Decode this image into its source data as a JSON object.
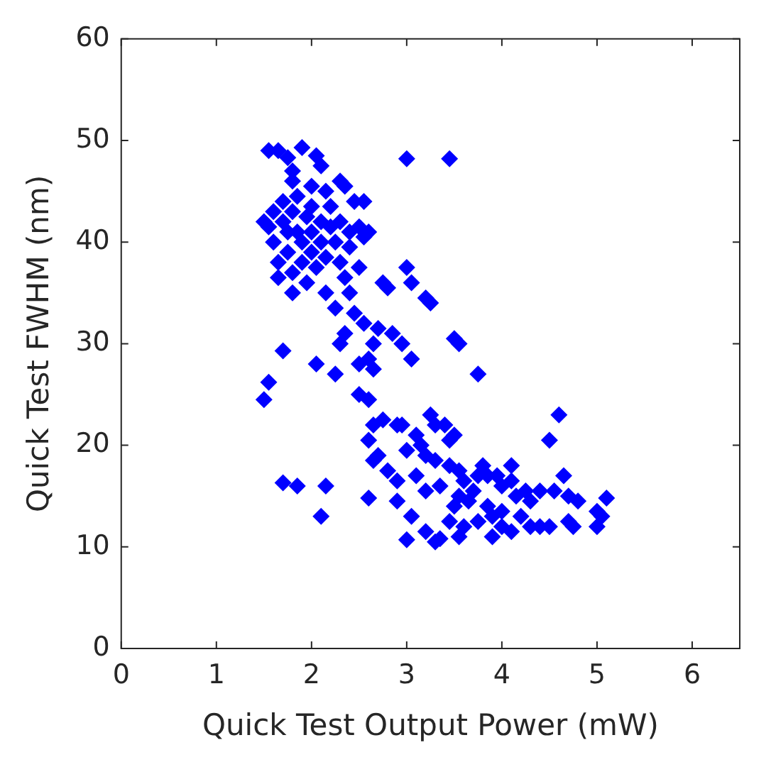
{
  "chart_data": {
    "type": "scatter",
    "xlabel": "Quick Test Output Power (mW)",
    "ylabel": "Quick Test FWHM (nm)",
    "xlim": [
      0,
      6.5
    ],
    "ylim": [
      0,
      60
    ],
    "xticks": [
      0,
      1,
      2,
      3,
      4,
      5,
      6
    ],
    "yticks": [
      0,
      10,
      20,
      30,
      40,
      50,
      60
    ],
    "grid": false,
    "legend": false,
    "marker": "diamond",
    "series": [
      {
        "color": "#0000ff",
        "x": [
          1.5,
          1.55,
          1.55,
          1.65,
          1.7,
          1.7,
          1.85,
          1.9,
          2.05,
          2.1,
          2.15,
          2.25,
          2.05,
          2.1,
          2.3,
          2.35,
          3.0,
          3.45,
          1.75,
          1.8,
          1.8,
          2.0,
          2.15,
          1.5,
          1.55,
          1.6,
          1.6,
          1.65,
          1.65,
          1.7,
          1.7,
          1.75,
          1.75,
          1.8,
          1.8,
          1.8,
          1.85,
          1.85,
          1.9,
          1.9,
          1.95,
          1.95,
          2.0,
          2.0,
          2.0,
          2.05,
          2.1,
          2.1,
          2.15,
          2.15,
          2.2,
          2.2,
          2.25,
          2.3,
          2.3,
          2.35,
          2.4,
          2.4,
          2.45,
          2.5,
          2.55,
          2.55,
          2.6,
          2.5,
          2.45,
          2.35,
          2.3,
          2.25,
          2.4,
          2.55,
          2.65,
          2.75,
          2.8,
          2.7,
          2.85,
          2.95,
          3.0,
          3.05,
          3.2,
          3.25,
          3.05,
          3.5,
          3.55,
          3.75,
          2.5,
          2.6,
          2.65,
          2.5,
          2.6,
          2.65,
          2.75,
          2.6,
          2.7,
          2.65,
          2.9,
          2.95,
          2.6,
          2.9,
          2.8,
          2.9,
          3.0,
          3.2,
          3.3,
          3.35,
          3.05,
          3.1,
          3.2,
          3.1,
          3.15,
          3.2,
          3.3,
          3.25,
          3.4,
          3.45,
          3.5,
          3.45,
          3.55,
          3.6,
          3.55,
          3.5,
          3.45,
          3.6,
          3.7,
          3.75,
          3.8,
          3.85,
          3.95,
          4.0,
          3.85,
          3.9,
          3.75,
          4.0,
          4.1,
          4.15,
          4.25,
          4.3,
          4.2,
          4.3,
          4.4,
          4.5,
          4.4,
          4.55,
          4.65,
          4.7,
          4.8,
          4.5,
          4.6,
          4.7,
          4.75,
          5.0,
          5.0,
          5.05,
          5.1,
          3.9,
          4.0,
          4.1,
          3.55,
          3.65,
          4.1,
          3.35,
          3.3,
          3.0
        ],
        "values": [
          24.5,
          26.2,
          49,
          49,
          16.3,
          29.3,
          16,
          49.3,
          28,
          13,
          16,
          27,
          48.5,
          47.5,
          46,
          45.5,
          48.2,
          48.2,
          48.3,
          47,
          46,
          45.5,
          45,
          42,
          41.5,
          43,
          40,
          38,
          36.5,
          42,
          44,
          41,
          39,
          43,
          37,
          35,
          41,
          44.5,
          40,
          38,
          42.5,
          36,
          41,
          39,
          43.5,
          37.5,
          42,
          40,
          38.5,
          35,
          41.5,
          43.5,
          40,
          38,
          42,
          36.5,
          41,
          39.5,
          44,
          41.5,
          44,
          40.5,
          41,
          37.5,
          33,
          31,
          30,
          33.5,
          35,
          32,
          30,
          36,
          35.5,
          31.5,
          31,
          30,
          37.5,
          36,
          34.5,
          34,
          28.5,
          30.5,
          30,
          27,
          28,
          28.5,
          27.5,
          25,
          24.5,
          22,
          22.5,
          20.5,
          19,
          18.5,
          22,
          22,
          14.8,
          16.5,
          17.5,
          14.5,
          10.7,
          11.5,
          10.5,
          10.8,
          13,
          17,
          15.5,
          21,
          20,
          19,
          22,
          23,
          22,
          20.5,
          21,
          18,
          17.5,
          16.5,
          15,
          14,
          12.5,
          12,
          15.5,
          17,
          18,
          17,
          17,
          16,
          14,
          13,
          12.5,
          12,
          11.5,
          15,
          15.5,
          14.5,
          13,
          12,
          12,
          12,
          15.5,
          15.5,
          17,
          15,
          14.5,
          20.5,
          23,
          12.5,
          12,
          13.5,
          12,
          13,
          14.8,
          11,
          13.5,
          16.5,
          11,
          14.5,
          18,
          16,
          18.5,
          19.5
        ]
      }
    ]
  }
}
